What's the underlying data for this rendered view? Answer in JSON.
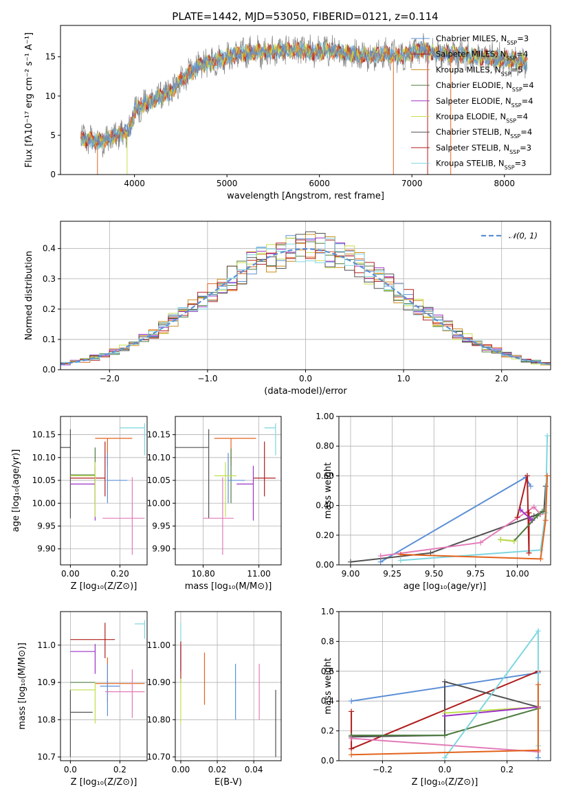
{
  "page": {
    "title": "PLATE=1442, MJD=53050, FIBERID=0121, z=0.114"
  },
  "colors": {
    "Chabrier MILES": "#5b8fd6",
    "Salpeter MILES": "#e2621b",
    "Kroupa MILES": "#c98a1a",
    "Chabrier ELODIE": "#4c7a3e",
    "Salpeter ELODIE": "#9b31c4",
    "Kroupa ELODIE": "#c7dd4a",
    "Chabrier STELIB": "#505050",
    "Salpeter STELIB": "#b01c1c",
    "Kroupa STELIB": "#7dd6e0",
    "extra_pink": "#e27ab8",
    "extra_lime": "#bedf4a",
    "gaussian": "#5b8fd6"
  },
  "legend_spectrum": [
    {
      "text": "Chabrier MILES, N",
      "sub": "SSP",
      "tail": "=3",
      "color": "#5b8fd6"
    },
    {
      "text": "Salpeter MILES, N",
      "sub": "SSP",
      "tail": "=4",
      "color": "#b01c1c"
    },
    {
      "text": "Kroupa MILES, N",
      "sub": "SSP",
      "tail": "=5",
      "color": "#c98a1a"
    },
    {
      "text": "Chabrier ELODIE, N",
      "sub": "SSP",
      "tail": "=4",
      "color": "#4c7a3e"
    },
    {
      "text": "Salpeter ELODIE, N",
      "sub": "SSP",
      "tail": "=4",
      "color": "#9b31c4"
    },
    {
      "text": "Kroupa ELODIE, N",
      "sub": "SSP",
      "tail": "=4",
      "color": "#c7dd4a"
    },
    {
      "text": "Chabrier STELIB, N",
      "sub": "SSP",
      "tail": "=4",
      "color": "#505050"
    },
    {
      "text": "Salpeter STELIB, N",
      "sub": "SSP",
      "tail": "=3",
      "color": "#b01c1c"
    },
    {
      "text": "Kroupa STELIB, N",
      "sub": "SSP",
      "tail": "=3",
      "color": "#7dd6e0"
    }
  ],
  "chart_data": [
    {
      "id": "spectrum",
      "type": "line",
      "title": "PLATE=1442, MJD=53050, FIBERID=0121, z=0.114",
      "xlabel": "wavelength [Angstrom, rest frame]",
      "ylabel": "Flux [fλ10⁻¹⁷ erg cm⁻² s⁻¹ A⁻¹]",
      "xlim": [
        3200,
        8500
      ],
      "ylim": [
        0,
        19
      ],
      "xticks": [
        4000,
        5000,
        6000,
        7000,
        8000
      ],
      "yticks": [
        0,
        5,
        10,
        15
      ],
      "continuum": {
        "x": [
          3420,
          3600,
          3800,
          3950,
          4000,
          4200,
          4400,
          4500,
          4700,
          4900,
          5100,
          5300,
          5500,
          5700,
          5900,
          6100,
          6300,
          6500,
          6700,
          6900,
          7100,
          7300,
          7500,
          7700,
          7900,
          8100,
          8250
        ],
        "y": [
          4.6,
          4.2,
          4.9,
          5.6,
          8.2,
          9.5,
          10.6,
          12.0,
          13.8,
          14.6,
          15.3,
          15.6,
          15.7,
          15.9,
          15.6,
          15.8,
          15.5,
          15.2,
          15.3,
          15.1,
          15.9,
          15.4,
          15.3,
          15.0,
          14.8,
          14.6,
          14.2
        ]
      }
    },
    {
      "id": "residuals",
      "type": "histogram",
      "xlabel": "(data-model)/error",
      "ylabel": "Normed distribution",
      "xlim": [
        -2.5,
        2.5
      ],
      "ylim": [
        0,
        0.49
      ],
      "xticks": [
        -2,
        -1,
        0,
        1,
        2
      ],
      "yticks": [
        0.0,
        0.1,
        0.2,
        0.3,
        0.4
      ],
      "legend": "𝒩(0, 1)",
      "bin_width": 0.1
    },
    {
      "id": "age_vs_Z",
      "type": "errorbar",
      "xlabel": "Z [log₁₀(Z/Z⊙)]",
      "ylabel": "age  [log₁₀(age/yr)]",
      "xlim": [
        -0.04,
        0.31
      ],
      "ylim": [
        9.865,
        10.19
      ],
      "xticks": [
        0.0,
        0.2
      ],
      "yticks": [
        9.9,
        9.95,
        10.0,
        10.05,
        10.1,
        10.15
      ],
      "points": [
        {
          "color": "#505050",
          "x": 0.0,
          "y": 10.122,
          "xerr": [
            0.04,
            0.0
          ],
          "yerr": [
            0.155,
            0.04
          ]
        },
        {
          "color": "#e2621b",
          "x": 0.15,
          "y": 10.142,
          "xerr": [
            0.05,
            0.1
          ],
          "yerr": [
            0.06,
            0.0
          ]
        },
        {
          "color": "#7dd6e0",
          "x": 0.3,
          "y": 10.165,
          "xerr": [
            0.1,
            0.0
          ],
          "yerr": [
            0.06,
            0.01
          ]
        },
        {
          "color": "#4c7a3e",
          "x": 0.1,
          "y": 10.062,
          "xerr": [
            0.1,
            0.0
          ],
          "yerr": [
            0.06,
            0.06
          ]
        },
        {
          "color": "#5b8fd6",
          "x": 0.15,
          "y": 10.05,
          "xerr": [
            0.0,
            0.08
          ],
          "yerr": [
            0.05,
            0.06
          ]
        },
        {
          "color": "#b01c1c",
          "x": 0.14,
          "y": 10.055,
          "xerr": [
            0.14,
            0.0
          ],
          "yerr": [
            0.04,
            0.08
          ]
        },
        {
          "color": "#9b31c4",
          "x": 0.1,
          "y": 10.042,
          "xerr": [
            0.1,
            0.0
          ],
          "yerr": [
            0.08,
            0.04
          ]
        },
        {
          "color": "#bedf4a",
          "x": 0.1,
          "y": 10.06,
          "xerr": [
            0.1,
            0.0
          ],
          "yerr": [
            0.09,
            0.03
          ]
        },
        {
          "color": "#e27ab8",
          "x": 0.25,
          "y": 9.967,
          "xerr": [
            0.12,
            0.05
          ],
          "yerr": [
            0.08,
            0.09
          ]
        }
      ]
    },
    {
      "id": "age_vs_mass",
      "type": "errorbar",
      "xlabel": "mass [log₁₀(M/M⊙)]",
      "ylabel": "",
      "xlim": [
        10.7,
        11.08
      ],
      "ylim": [
        9.865,
        10.19
      ],
      "xticks": [
        10.8,
        11.0
      ],
      "yticks": [
        9.9,
        9.95,
        10.0,
        10.05,
        10.1,
        10.15
      ],
      "points": [
        {
          "color": "#505050",
          "x": 10.82,
          "y": 10.122,
          "xerr": [
            0.12,
            0.0
          ],
          "yerr": [
            0.155,
            0.04
          ]
        },
        {
          "color": "#e2621b",
          "x": 10.9,
          "y": 10.142,
          "xerr": [
            0.06,
            0.09
          ],
          "yerr": [
            0.06,
            0.0
          ]
        },
        {
          "color": "#7dd6e0",
          "x": 11.06,
          "y": 10.165,
          "xerr": [
            0.04,
            0.0
          ],
          "yerr": [
            0.06,
            0.01
          ]
        },
        {
          "color": "#4c7a3e",
          "x": 10.9,
          "y": 10.06,
          "xerr": [
            0.0,
            0.0
          ],
          "yerr": [
            0.06,
            0.06
          ]
        },
        {
          "color": "#5b8fd6",
          "x": 10.89,
          "y": 10.05,
          "xerr": [
            0.0,
            0.06
          ],
          "yerr": [
            0.05,
            0.06
          ]
        },
        {
          "color": "#b01c1c",
          "x": 11.02,
          "y": 10.055,
          "xerr": [
            0.04,
            0.04
          ],
          "yerr": [
            0.04,
            0.08
          ]
        },
        {
          "color": "#9b31c4",
          "x": 10.98,
          "y": 10.042,
          "xerr": [
            0.06,
            0.0
          ],
          "yerr": [
            0.08,
            0.04
          ]
        },
        {
          "color": "#bedf4a",
          "x": 10.88,
          "y": 10.06,
          "xerr": [
            0.04,
            0.04
          ],
          "yerr": [
            0.09,
            0.03
          ]
        },
        {
          "color": "#e27ab8",
          "x": 10.87,
          "y": 9.967,
          "xerr": [
            0.07,
            0.04
          ],
          "yerr": [
            0.08,
            0.09
          ]
        }
      ]
    },
    {
      "id": "weight_vs_age",
      "type": "line",
      "xlabel": "age  [log₁₀(age/yr)]",
      "ylabel": "mass weight",
      "xlim": [
        8.93,
        10.2
      ],
      "ylim": [
        0,
        1
      ],
      "xticks": [
        9.0,
        9.25,
        9.5,
        9.75,
        10.0
      ],
      "yticks": [
        0.0,
        0.2,
        0.4,
        0.6,
        0.8,
        1.0
      ],
      "series": [
        {
          "color": "#5b8fd6",
          "x": [
            9.18,
            10.05,
            10.08
          ],
          "y": [
            0.02,
            0.59,
            0.53
          ]
        },
        {
          "color": "#505050",
          "x": [
            9.0,
            9.48,
            10.1,
            10.16,
            10.17
          ],
          "y": [
            0.02,
            0.08,
            0.33,
            0.36,
            0.53
          ]
        },
        {
          "color": "#e27ab8",
          "x": [
            9.18,
            9.78,
            10.1,
            10.14
          ],
          "y": [
            0.06,
            0.15,
            0.39,
            0.34
          ]
        },
        {
          "color": "#7dd6e0",
          "x": [
            9.3,
            10.14,
            10.17,
            10.18
          ],
          "y": [
            0.03,
            0.1,
            0.35,
            0.87
          ]
        },
        {
          "color": "#e2621b",
          "x": [
            9.3,
            10.14,
            10.17,
            10.18
          ],
          "y": [
            0.07,
            0.04,
            0.3,
            0.6
          ]
        },
        {
          "color": "#b01c1c",
          "x": [
            10.0,
            10.06,
            10.07,
            10.07
          ],
          "y": [
            0.32,
            0.6,
            0.08,
            0.35
          ]
        },
        {
          "color": "#9b31c4",
          "x": [
            10.02,
            10.08,
            10.09
          ],
          "y": [
            0.37,
            0.31,
            0.3
          ]
        },
        {
          "color": "#4c7a3e",
          "x": [
            9.9,
            9.98,
            10.12,
            10.15
          ],
          "y": [
            0.17,
            0.16,
            0.33,
            0.36
          ]
        },
        {
          "color": "#bedf4a",
          "x": [
            9.9,
            9.98
          ],
          "y": [
            0.17,
            0.16
          ]
        }
      ]
    },
    {
      "id": "mass_vs_Z",
      "type": "errorbar",
      "xlabel": "Z [log₁₀(Z/Z⊙)]",
      "ylabel": "mass [log₁₀(M/M⊙)]",
      "xlim": [
        -0.04,
        0.31
      ],
      "ylim": [
        10.69,
        11.09
      ],
      "xticks": [
        0.0,
        0.2
      ],
      "yticks": [
        10.7,
        10.8,
        10.9,
        11.0
      ],
      "points": [
        {
          "color": "#505050",
          "x": 0.0,
          "y": 10.82,
          "xerr": [
            0.0,
            0.09
          ],
          "yerr": [
            0.12,
            0.06
          ]
        },
        {
          "color": "#e2621b",
          "x": 0.15,
          "y": 10.897,
          "xerr": [
            0.05,
            0.15
          ],
          "yerr": [
            0.05,
            0.07
          ]
        },
        {
          "color": "#7dd6e0",
          "x": 0.3,
          "y": 11.057,
          "xerr": [
            0.04,
            0.0
          ],
          "yerr": [
            0.04,
            0.01
          ]
        },
        {
          "color": "#4c7a3e",
          "x": 0.1,
          "y": 10.9,
          "xerr": [
            0.1,
            0.0
          ],
          "yerr": [
            0.0,
            0.0
          ]
        },
        {
          "color": "#5b8fd6",
          "x": 0.15,
          "y": 10.89,
          "xerr": [
            0.03,
            0.05
          ],
          "yerr": [
            0.08,
            0.06
          ]
        },
        {
          "color": "#b01c1c",
          "x": 0.14,
          "y": 11.015,
          "xerr": [
            0.14,
            0.04
          ],
          "yerr": [
            0.05,
            0.045
          ]
        },
        {
          "color": "#9b31c4",
          "x": 0.1,
          "y": 10.983,
          "xerr": [
            0.1,
            0.0
          ],
          "yerr": [
            0.06,
            0.02
          ]
        },
        {
          "color": "#bedf4a",
          "x": 0.1,
          "y": 10.88,
          "xerr": [
            0.1,
            0.0
          ],
          "yerr": [
            0.09,
            0.02
          ]
        },
        {
          "color": "#e27ab8",
          "x": 0.25,
          "y": 10.875,
          "xerr": [
            0.11,
            0.05
          ],
          "yerr": [
            0.07,
            0.06
          ]
        }
      ]
    },
    {
      "id": "mass_vs_EBV",
      "type": "errorbar",
      "xlabel": "E(B-V)",
      "ylabel": "",
      "xlim": [
        -0.003,
        0.055
      ],
      "ylim": [
        10.69,
        11.09
      ],
      "xticks": [
        0.0,
        0.02,
        0.04
      ],
      "yticks": [
        10.7,
        10.8,
        10.9,
        11.0
      ],
      "points": [
        {
          "color": "#7dd6e0",
          "x": 0.0,
          "y": 11.0,
          "xerr": [
            0,
            0
          ],
          "yerr": [
            0.07,
            0.06
          ]
        },
        {
          "color": "#9b31c4",
          "x": 0.0,
          "y": 10.97,
          "xerr": [
            0,
            0
          ],
          "yerr": [
            0.04,
            0.03
          ]
        },
        {
          "color": "#b01c1c",
          "x": 0.0,
          "y": 10.96,
          "xerr": [
            0,
            0
          ],
          "yerr": [
            0.06,
            0.05
          ]
        },
        {
          "color": "#bedf4a",
          "x": 0.0,
          "y": 10.85,
          "xerr": [
            0,
            0
          ],
          "yerr": [
            0.06,
            0.06
          ]
        },
        {
          "color": "#e2621b",
          "x": 0.013,
          "y": 10.91,
          "xerr": [
            0,
            0
          ],
          "yerr": [
            0.07,
            0.07
          ]
        },
        {
          "color": "#5b8fd6",
          "x": 0.03,
          "y": 10.875,
          "xerr": [
            0,
            0
          ],
          "yerr": [
            0.075,
            0.075
          ]
        },
        {
          "color": "#e27ab8",
          "x": 0.043,
          "y": 10.875,
          "xerr": [
            0,
            0
          ],
          "yerr": [
            0.075,
            0.075
          ]
        },
        {
          "color": "#505050",
          "x": 0.052,
          "y": 10.79,
          "xerr": [
            0,
            0
          ],
          "yerr": [
            0.09,
            0.09
          ]
        }
      ]
    },
    {
      "id": "weight_vs_Z",
      "type": "line",
      "xlabel": "Z [log₁₀(Z/Z⊙)]",
      "ylabel": "mass weight",
      "xlim": [
        -0.34,
        0.34
      ],
      "ylim": [
        0,
        1
      ],
      "xticks": [
        -0.2,
        0.0,
        0.2
      ],
      "yticks": [
        0.0,
        0.2,
        0.4,
        0.6,
        0.8,
        1.0
      ],
      "series": [
        {
          "color": "#5b8fd6",
          "x": [
            -0.3,
            0.3,
            0.3
          ],
          "y": [
            0.4,
            0.59,
            0.02
          ]
        },
        {
          "color": "#b01c1c",
          "x": [
            -0.3,
            -0.3,
            0.3,
            0.3
          ],
          "y": [
            0.33,
            0.08,
            0.6,
            0.6
          ]
        },
        {
          "color": "#505050",
          "x": [
            -0.3,
            0.0,
            0.0,
            0.3
          ],
          "y": [
            0.16,
            0.17,
            0.53,
            0.36
          ]
        },
        {
          "color": "#4c7a3e",
          "x": [
            -0.3,
            0.0,
            0.3
          ],
          "y": [
            0.17,
            0.17,
            0.35
          ]
        },
        {
          "color": "#bedf4a",
          "x": [
            0.0,
            0.3
          ],
          "y": [
            0.32,
            0.36
          ]
        },
        {
          "color": "#9b31c4",
          "x": [
            0.0,
            0.3
          ],
          "y": [
            0.3,
            0.36
          ]
        },
        {
          "color": "#e27ab8",
          "x": [
            -0.3,
            0.3
          ],
          "y": [
            0.15,
            0.06
          ]
        },
        {
          "color": "#7dd6e0",
          "x": [
            0.0,
            0.3,
            0.3
          ],
          "y": [
            0.02,
            0.87,
            0.1
          ]
        },
        {
          "color": "#e2621b",
          "x": [
            -0.3,
            0.3,
            0.3
          ],
          "y": [
            0.04,
            0.07,
            0.51
          ]
        }
      ]
    }
  ]
}
